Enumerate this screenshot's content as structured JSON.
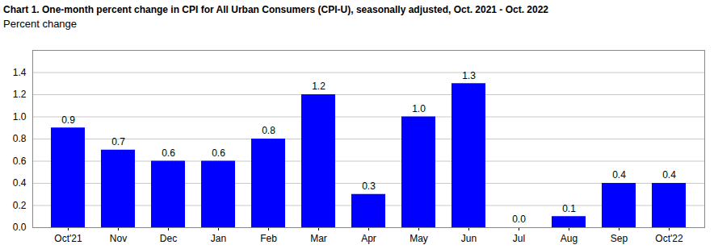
{
  "chart_data": {
    "type": "bar",
    "title": "Chart 1. One-month percent change in CPI for All Urban Consumers (CPI-U), seasonally adjusted, Oct. 2021 - Oct. 2022",
    "subtitle": "Percent change",
    "categories": [
      "Oct'21",
      "Nov",
      "Dec",
      "Jan",
      "Feb",
      "Mar",
      "Apr",
      "May",
      "Jun",
      "Jul",
      "Aug",
      "Sep",
      "Oct'22"
    ],
    "values": [
      0.9,
      0.7,
      0.6,
      0.6,
      0.8,
      1.2,
      0.3,
      1.0,
      1.3,
      0.0,
      0.1,
      0.4,
      0.4
    ],
    "value_labels": [
      "0.9",
      "0.7",
      "0.6",
      "0.6",
      "0.8",
      "1.2",
      "0.3",
      "1.0",
      "1.3",
      "0.0",
      "0.1",
      "0.4",
      "0.4"
    ],
    "color": "#0000ff",
    "ylim": [
      0,
      1.6
    ],
    "yticks": [
      {
        "value": 0,
        "label": "0.0"
      },
      0.2,
      0.4,
      0.6,
      0.8,
      {
        "value": 1,
        "label": "1.0"
      },
      1.2,
      1.4
    ],
    "grid": true,
    "data_labels": true
  }
}
